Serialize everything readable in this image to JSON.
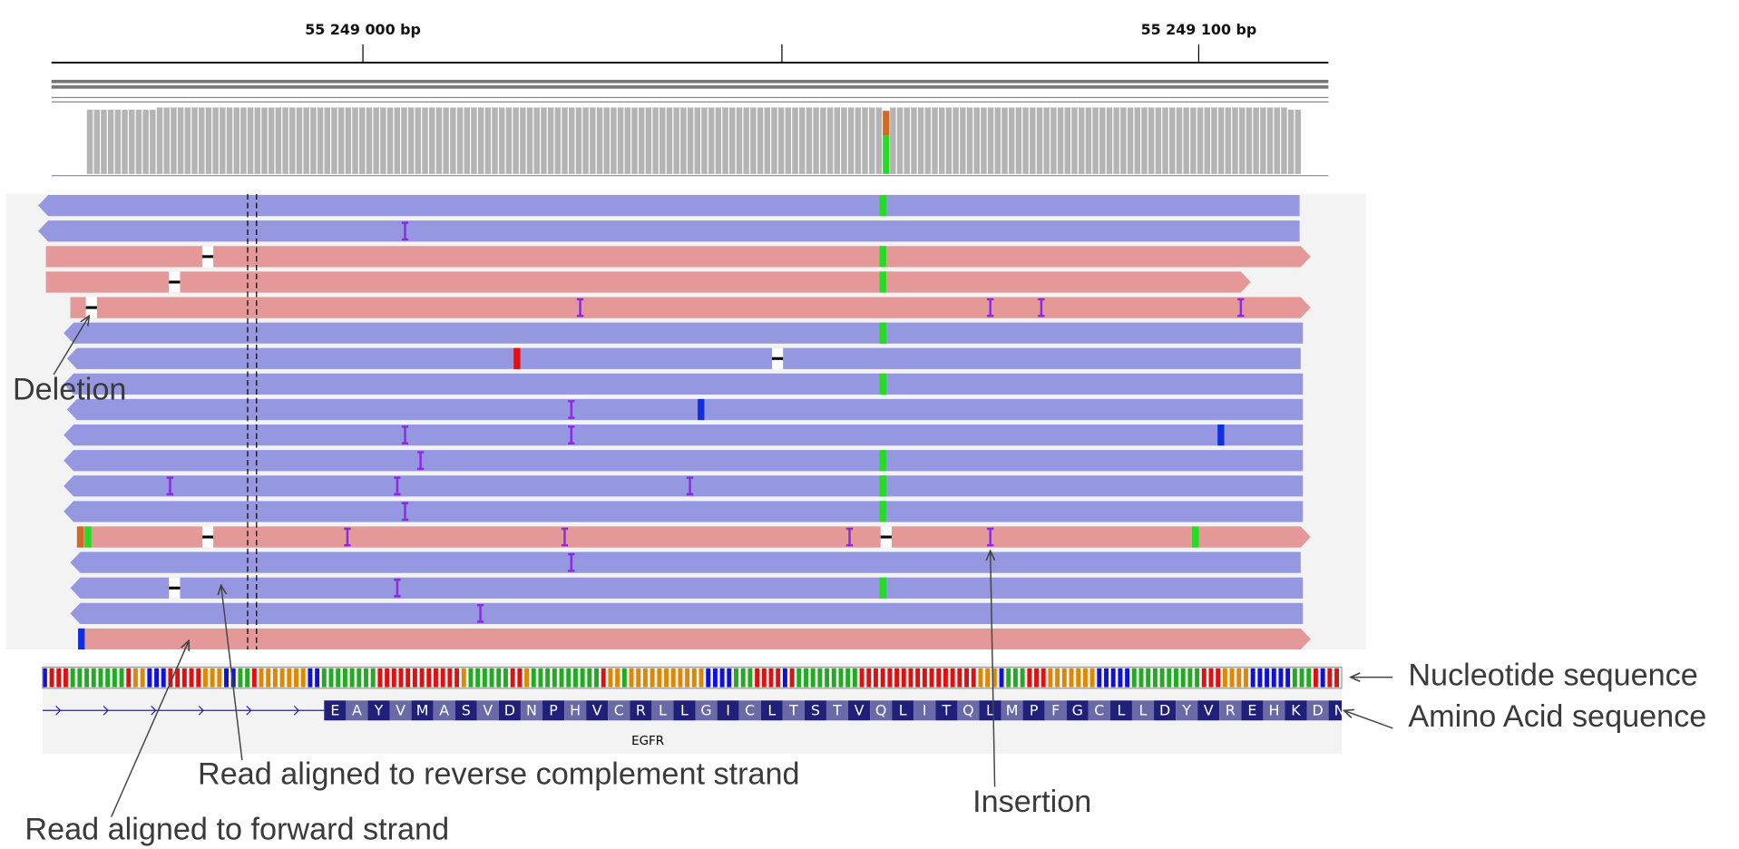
{
  "ruler": {
    "labels": [
      "55 249 000 bp",
      "55 249 100 bp"
    ]
  },
  "sequence": {
    "amino_acids": [
      "E",
      "A",
      "Y",
      "V",
      "M",
      "A",
      "S",
      "V",
      "D",
      "N",
      "P",
      "H",
      "V",
      "C",
      "R",
      "L",
      "L",
      "G",
      "I",
      "C",
      "L",
      "T",
      "S",
      "T",
      "V",
      "Q",
      "L",
      "I",
      "T",
      "Q",
      "L",
      "M",
      "P",
      "F",
      "G",
      "C",
      "L",
      "L",
      "D",
      "Y",
      "V",
      "R",
      "E",
      "H",
      "K",
      "D",
      "N"
    ],
    "gene": "EGFR"
  },
  "annotations": {
    "deletion": "Deletion",
    "reverse": "Read aligned to reverse complement strand",
    "forward": "Read aligned to forward strand",
    "insertion": "Insertion",
    "nucleotide": "Nucleotide sequence",
    "amino_acid": "Amino Acid sequence"
  }
}
